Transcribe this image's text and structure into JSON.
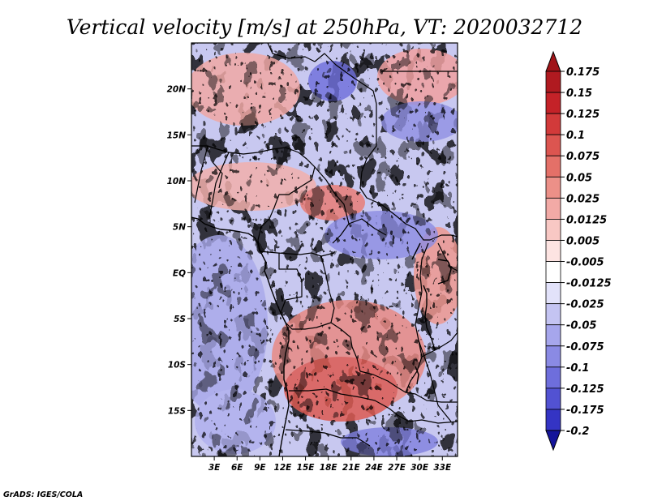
{
  "title": "Vertical velocity [m/s] at 250hPa, VT: 2020032712",
  "credit": "GrADS: IGES/COLA",
  "map": {
    "lon_range": [
      0,
      35
    ],
    "lat_range": [
      -20,
      25
    ],
    "lat_ticks": [
      {
        "value": 20,
        "label": "20N"
      },
      {
        "value": 15,
        "label": "15N"
      },
      {
        "value": 10,
        "label": "10N"
      },
      {
        "value": 5,
        "label": "5N"
      },
      {
        "value": 0,
        "label": "EQ"
      },
      {
        "value": -5,
        "label": "5S"
      },
      {
        "value": -10,
        "label": "10S"
      },
      {
        "value": -15,
        "label": "15S"
      }
    ],
    "lon_ticks": [
      {
        "value": 3,
        "label": "3E"
      },
      {
        "value": 6,
        "label": "6E"
      },
      {
        "value": 9,
        "label": "9E"
      },
      {
        "value": 12,
        "label": "12E"
      },
      {
        "value": 15,
        "label": "15E"
      },
      {
        "value": 18,
        "label": "18E"
      },
      {
        "value": 21,
        "label": "21E"
      },
      {
        "value": 24,
        "label": "24E"
      },
      {
        "value": 27,
        "label": "27E"
      },
      {
        "value": 30,
        "label": "30E"
      },
      {
        "value": 33,
        "label": "33E"
      }
    ]
  },
  "colorbar": {
    "levels": [
      {
        "label": "0.175",
        "color": "#b01a20"
      },
      {
        "label": "0.15",
        "color": "#c42228"
      },
      {
        "label": "0.125",
        "color": "#d23a3a"
      },
      {
        "label": "0.1",
        "color": "#dc5550"
      },
      {
        "label": "0.075",
        "color": "#e47068"
      },
      {
        "label": "0.05",
        "color": "#ec9088"
      },
      {
        "label": "0.025",
        "color": "#f2aaa6"
      },
      {
        "label": "0.0125",
        "color": "#f8c8c4"
      },
      {
        "label": "0.005",
        "color": "#fde4e2"
      },
      {
        "label": "-0.005",
        "color": "#ffffff"
      },
      {
        "label": "-0.0125",
        "color": "#e2e2fa"
      },
      {
        "label": "-0.025",
        "color": "#c4c4f2"
      },
      {
        "label": "-0.05",
        "color": "#a6a6ec"
      },
      {
        "label": "-0.075",
        "color": "#8a8ae4"
      },
      {
        "label": "-0.1",
        "color": "#6e6edc"
      },
      {
        "label": "-0.125",
        "color": "#5252d2"
      },
      {
        "label": "-0.175",
        "color": "#3434c4"
      },
      {
        "label": "-0.2",
        "color": "#1c1cae"
      }
    ],
    "top_color": "#a01418",
    "bottom_color": "#14149a"
  }
}
